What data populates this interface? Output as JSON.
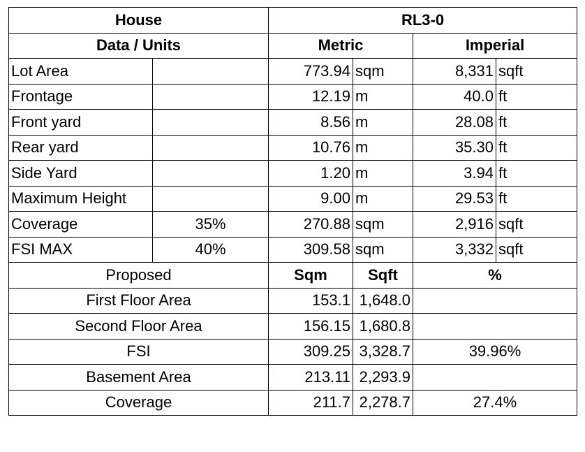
{
  "header": {
    "house_label": "House",
    "zone_label": "RL3-0",
    "data_units_label": "Data / Units",
    "metric_label": "Metric",
    "imperial_label": "Imperial"
  },
  "zoning_rows": [
    {
      "label": "Lot Area",
      "pct": "",
      "metric": "773.94",
      "metric_unit": "sqm",
      "imperial": "8,331",
      "imperial_unit": "sqft"
    },
    {
      "label": "Frontage",
      "pct": "",
      "metric": "12.19",
      "metric_unit": "m",
      "imperial": "40.0",
      "imperial_unit": "ft"
    },
    {
      "label": "Front yard",
      "pct": "",
      "metric": "8.56",
      "metric_unit": "m",
      "imperial": "28.08",
      "imperial_unit": "ft"
    },
    {
      "label": "Rear yard",
      "pct": "",
      "metric": "10.76",
      "metric_unit": "m",
      "imperial": "35.30",
      "imperial_unit": "ft"
    },
    {
      "label": "Side Yard",
      "pct": "",
      "metric": "1.20",
      "metric_unit": "m",
      "imperial": "3.94",
      "imperial_unit": "ft"
    },
    {
      "label": "Maximum Height",
      "pct": "",
      "metric": "9.00",
      "metric_unit": "m",
      "imperial": "29.53",
      "imperial_unit": "ft"
    },
    {
      "label": "Coverage",
      "pct": "35%",
      "metric": "270.88",
      "metric_unit": "sqm",
      "imperial": "2,916",
      "imperial_unit": "sqft"
    },
    {
      "label": "FSI MAX",
      "pct": "40%",
      "metric": "309.58",
      "metric_unit": "sqm",
      "imperial": "3,332",
      "imperial_unit": "sqft"
    }
  ],
  "proposed_header": {
    "label": "Proposed",
    "sqm": "Sqm",
    "sqft": "Sqft",
    "pct": "%"
  },
  "proposed_rows": [
    {
      "label": "First Floor Area",
      "sqm": "153.1",
      "sqft": "1,648.0",
      "pct": ""
    },
    {
      "label": "Second Floor Area",
      "sqm": "156.15",
      "sqft": "1,680.8",
      "pct": ""
    },
    {
      "label": "FSI",
      "sqm": "309.25",
      "sqft": "3,328.7",
      "pct": "39.96%"
    },
    {
      "label": "Basement Area",
      "sqm": "213.11",
      "sqft": "2,293.9",
      "pct": ""
    },
    {
      "label": "Coverage",
      "sqm": "211.7",
      "sqft": "2,278.7",
      "pct": "27.4%"
    }
  ]
}
